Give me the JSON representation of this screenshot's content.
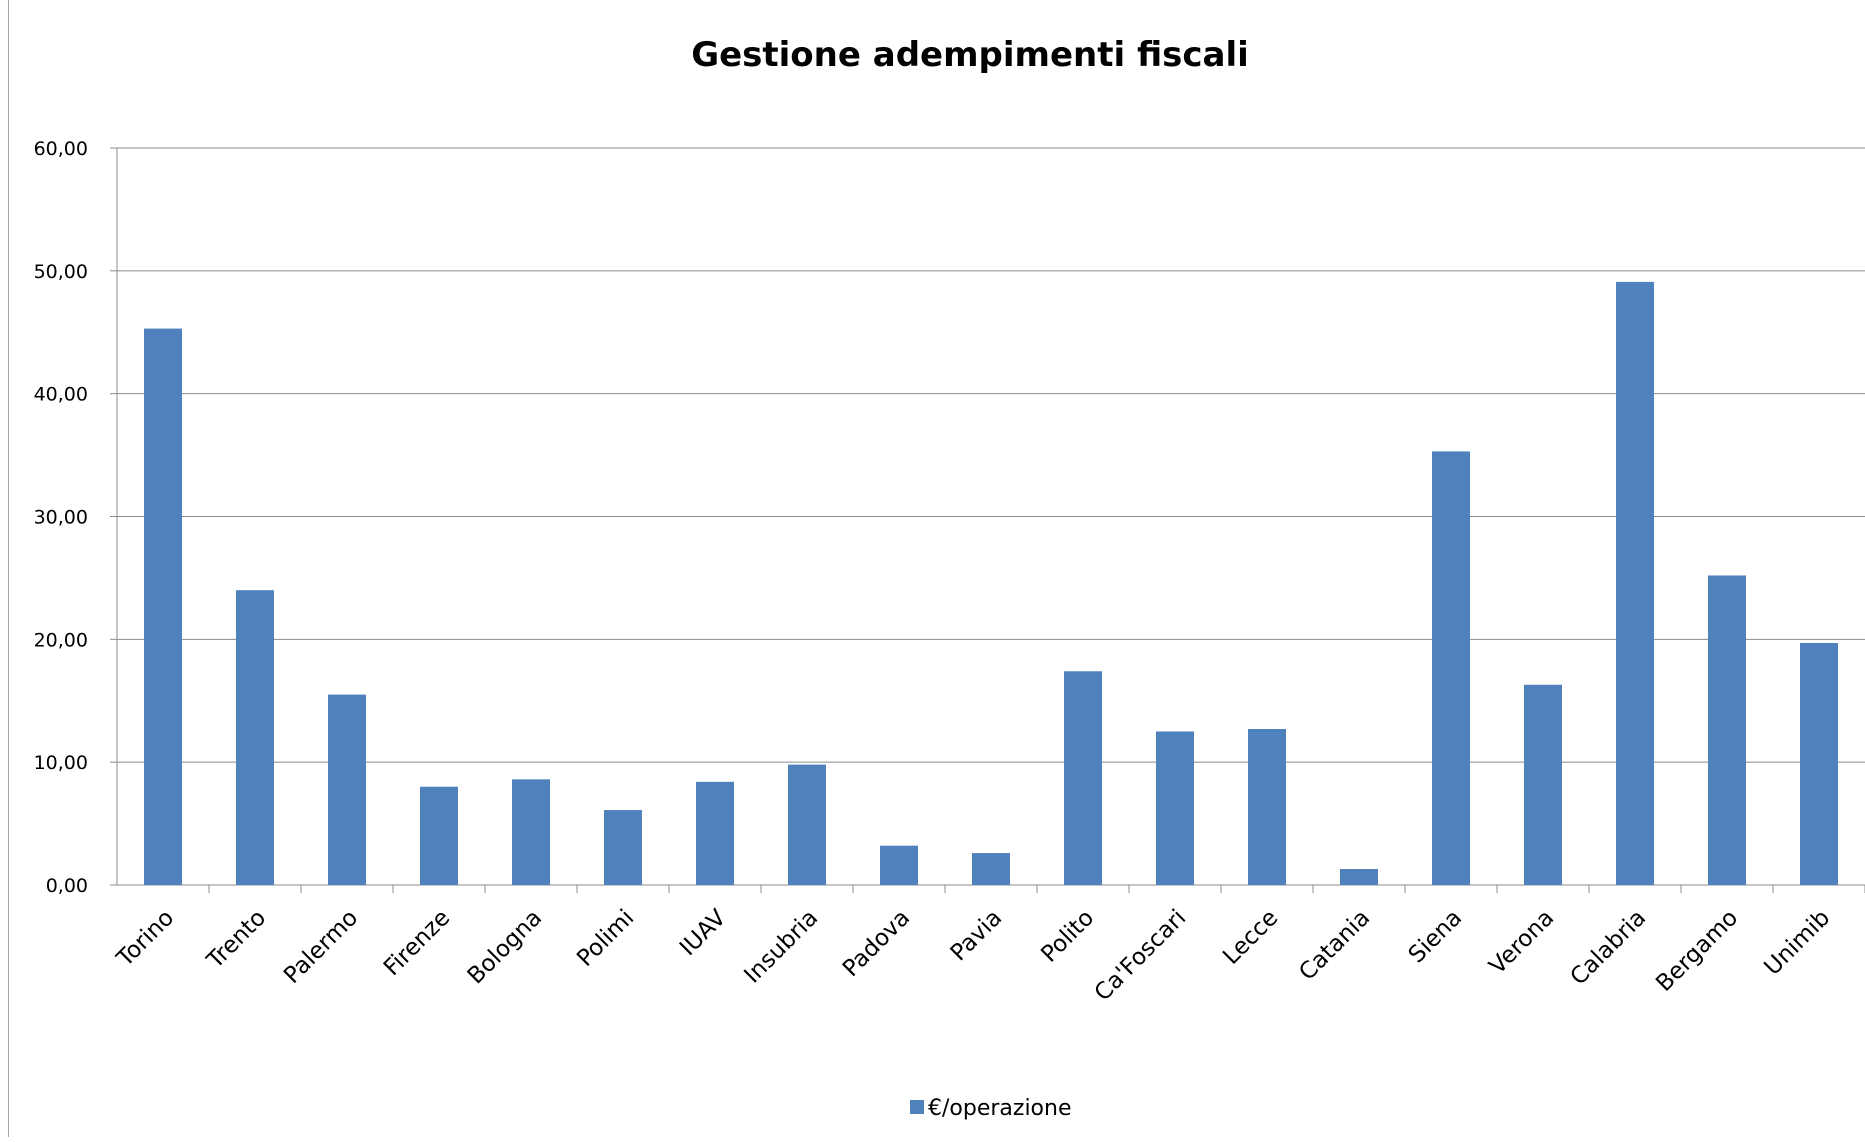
{
  "chart_data": {
    "type": "bar",
    "title": "Gestione adempimenti fiscali",
    "xlabel": "",
    "ylabel": "",
    "categories": [
      "Torino",
      "Trento",
      "Palermo",
      "Firenze",
      "Bologna",
      "Polimi",
      "IUAV",
      "Insubria",
      "Padova",
      "Pavia",
      "Polito",
      "Ca'Foscari",
      "Lecce",
      "Catania",
      "Siena",
      "Verona",
      "Calabria",
      "Bergamo",
      "Unimib"
    ],
    "series": [
      {
        "name": "€/operazione",
        "color": "#4f81bd",
        "values": [
          45.3,
          24.0,
          15.5,
          8.0,
          8.6,
          6.1,
          8.4,
          9.8,
          3.2,
          2.6,
          17.4,
          12.5,
          12.7,
          1.3,
          35.3,
          16.3,
          49.1,
          25.2,
          19.7
        ]
      }
    ],
    "ylim": [
      0,
      60
    ],
    "yticks": [
      "0,00",
      "10,00",
      "20,00",
      "30,00",
      "40,00",
      "50,00",
      "60,00"
    ],
    "grid": true,
    "legend_position": "bottom"
  }
}
